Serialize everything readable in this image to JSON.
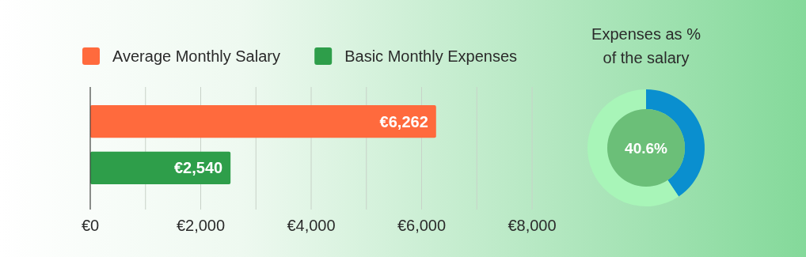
{
  "chart_data": [
    {
      "type": "bar",
      "orientation": "horizontal",
      "categories": [
        null,
        null
      ],
      "series": [
        {
          "name": "Average Monthly Salary",
          "color": "#ff6a3d",
          "values": [
            6262,
            null
          ],
          "value_labels": [
            "€6,262",
            null
          ]
        },
        {
          "name": "Basic Monthly Expenses",
          "color": "#2e9e4a",
          "values": [
            null,
            2540
          ],
          "value_labels": [
            null,
            "€2,540"
          ]
        }
      ],
      "xlim": [
        0,
        8000
      ],
      "xticks": [
        {
          "value": 0,
          "label": "€0"
        },
        {
          "value": 1000,
          "label": null
        },
        {
          "value": 2000,
          "label": "€2,000"
        },
        {
          "value": 3000,
          "label": null
        },
        {
          "value": 4000,
          "label": "€4,000"
        },
        {
          "value": 5000,
          "label": null
        },
        {
          "value": 6000,
          "label": "€6,000"
        },
        {
          "value": 7000,
          "label": null
        },
        {
          "value": 8000,
          "label": "€8,000"
        }
      ],
      "grid": "x",
      "legend": "top left"
    },
    {
      "type": "donut",
      "title": "Expenses as % of the salary",
      "categories": [
        null,
        null
      ],
      "values": [
        40.6,
        59.4
      ],
      "colors": [
        "#0a8fcf",
        "#a8f5b8"
      ],
      "annotations": [
        "40.6%"
      ]
    }
  ]
}
